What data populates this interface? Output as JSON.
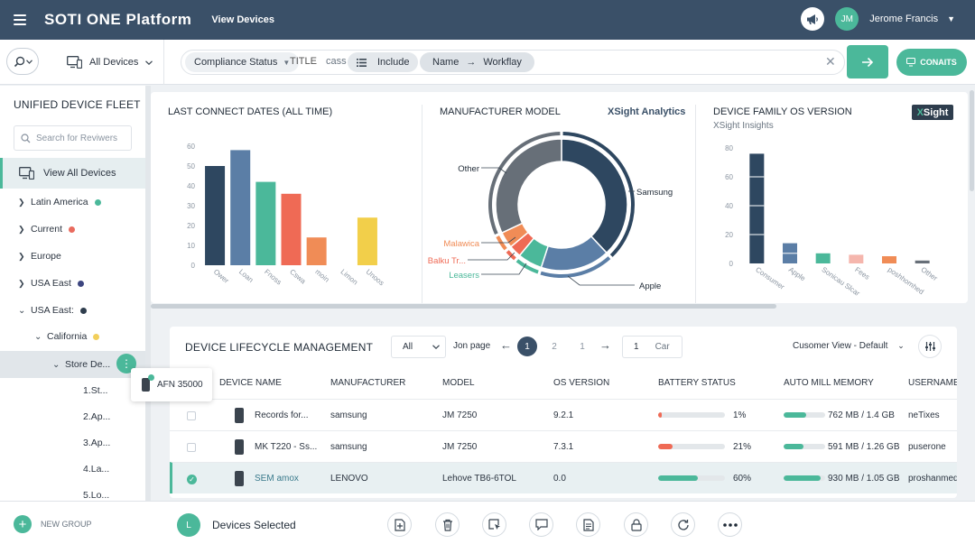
{
  "header": {
    "brand": "SOTI ONE Platform",
    "page": "View Devices",
    "avatar_initials": "JM",
    "user_name": "Jerome Francis"
  },
  "filterbar": {
    "scope": "All Devices",
    "chip_compliance": "Compliance Status",
    "text_title": "TITLE",
    "text_cass": "cass",
    "chip_include": "Include",
    "chip_name": "Name",
    "chip_workflow": "Workflay",
    "conaits_label": "CONAITS"
  },
  "sidebar": {
    "title": "UNIFIED DEVICE FLEET",
    "search_placeholder": "Search for Reviwers",
    "view_all": "View All Devices",
    "tree": [
      {
        "label": "Latin America",
        "color": "#4bb89a"
      },
      {
        "label": "Current",
        "color": "#e96b5e"
      },
      {
        "label": "Europe",
        "color": ""
      },
      {
        "label": "USA East",
        "color": "#3d4680"
      },
      {
        "label": "USA East:",
        "color": "#2e3d4d"
      },
      {
        "label": "California",
        "color": "#f2cf5b"
      },
      {
        "label": "Store De..."
      },
      {
        "label": "1.St..."
      },
      {
        "label": "2.Ap..."
      },
      {
        "label": "3.Ap..."
      },
      {
        "label": "4.La..."
      },
      {
        "label": "5.Lo..."
      }
    ],
    "tooltip": "AFN 35000"
  },
  "charts": {
    "connect_title": "LAST CONNECT DATES (ALL TIME)",
    "manufacturer_title": "MANUFACTURER MODEL",
    "xsight_link": "XSight Analytics",
    "os_title": "DEVICE FAMILY OS VERSION",
    "xsight_badge_x": "X",
    "xsight_badge_rest": "Sight",
    "xsight_sub": "XSight Insights"
  },
  "chart_data": [
    {
      "type": "bar",
      "title": "LAST CONNECT DATES (ALL TIME)",
      "categories": [
        "Ower",
        "Loan",
        "Fnoss",
        "Cswa",
        "moin",
        "Limon",
        "Unoos"
      ],
      "values": [
        50,
        58,
        42,
        36,
        14,
        0,
        24
      ],
      "colors": [
        "#2e4760",
        "#5b7ea6",
        "#4bb89a",
        "#ef6a55",
        "#f08c56",
        "#cccccc",
        "#f2cf4a"
      ],
      "yticks": [
        0,
        10,
        20,
        30,
        40,
        50,
        60
      ],
      "ylim": [
        0,
        60
      ],
      "grid": false
    },
    {
      "type": "pie",
      "title": "MANUFACTURER MODEL",
      "labels": [
        "Samsung",
        "Apple",
        "Leasers",
        "Balku Tr...",
        "Malawica",
        "Other"
      ],
      "values": [
        38,
        17,
        6,
        3,
        4,
        32
      ],
      "colors": [
        "#2e4760",
        "#5b7ea6",
        "#4bb89a",
        "#ef6a55",
        "#f08c56",
        "#676f78"
      ],
      "label_colors": [
        "#1f2a36",
        "#1f2a36",
        "#4bb89a",
        "#ef6a55",
        "#f08c56",
        "#1f2a36"
      ]
    },
    {
      "type": "bar",
      "title": "DEVICE FAMILY OS VERSION",
      "subtitle": "XSight Insights",
      "categories": [
        "Consumer",
        "Apple",
        "Sonicau Slcar",
        "Fees",
        "poshhomhed",
        "Other"
      ],
      "values": [
        76,
        14,
        7,
        6,
        5,
        2
      ],
      "colors": [
        "#2e4760",
        "#5b7ea6",
        "#4bb89a",
        "#f5b6ad",
        "#f08c56",
        "#676f78"
      ],
      "yticks": [
        0,
        20,
        40,
        60,
        80
      ],
      "ylim": [
        0,
        85
      ],
      "grid": false
    }
  ],
  "table": {
    "title": "DEVICE LIFECYCLE MANAGEMENT",
    "filter_all": "All",
    "jon_page": "Jon page",
    "pages": [
      "1",
      "2",
      "1"
    ],
    "page_input": "1",
    "car": "Car",
    "view": "Cusomer View - Default",
    "columns": [
      "DEVICE NAME",
      "MANUFACTURER",
      "MODEL",
      "OS VERSION",
      "BATTERY STATUS",
      "AUTO MILL MEMORY",
      "USERNAME"
    ],
    "rows": [
      {
        "name": "Records for...",
        "manufacturer": "samsung",
        "model": "JM 7250",
        "os": "9.2.1",
        "battery": "1%",
        "battery_pct": 1,
        "memory": "762 MB / 1.4 GB",
        "memory_pct": 54,
        "user": "neTixes",
        "selected": false
      },
      {
        "name": "MK T220 - Ss...",
        "manufacturer": "samsung",
        "model": "JM 7250",
        "os": "7.3.1",
        "battery": "21%",
        "battery_pct": 21,
        "memory": "591 MB / 1.26 GB",
        "memory_pct": 47,
        "user": "puserone",
        "selected": false
      },
      {
        "name": "SEM amox",
        "manufacturer": "LENOVO",
        "model": "Lehove TB6-6TOL",
        "os": "0.0",
        "battery": "60%",
        "battery_pct": 60,
        "memory": "930 MB / 1.05 GB",
        "memory_pct": 89,
        "user": "proshanmed",
        "selected": true
      }
    ]
  },
  "bottombar": {
    "new_group": "NEW GROUP",
    "selected_initial": "L",
    "selected_label": "Devices Selected"
  },
  "colors": {
    "navy": "#3a5068",
    "accent": "#4bb89a",
    "danger": "#ef6a55"
  }
}
